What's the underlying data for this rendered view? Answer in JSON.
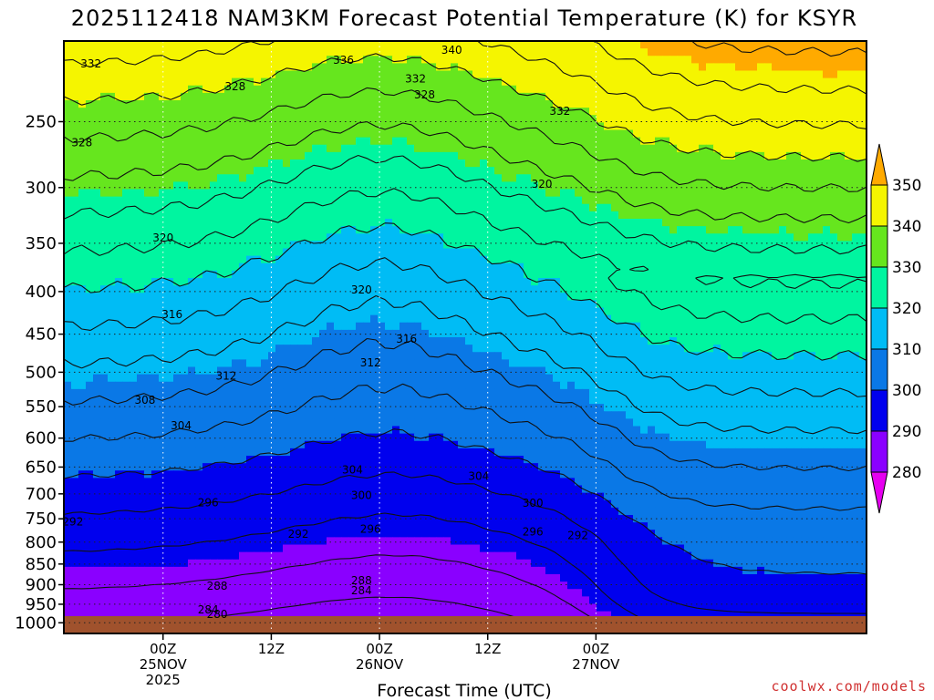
{
  "chart_data": {
    "type": "filled-contour",
    "title": "2025112418 NAM3KM Forecast Potential Temperature (K) for KSYR",
    "xlabel": "Forecast Time (UTC)",
    "ylabel": "",
    "credit": "coolwx.com/models",
    "x_range_hours": [
      -5,
      84
    ],
    "x_ticks": [
      {
        "hour": 6,
        "lines": [
          "00Z",
          "25NOV",
          "2025"
        ]
      },
      {
        "hour": 18,
        "lines": [
          "12Z"
        ]
      },
      {
        "hour": 30,
        "lines": [
          "00Z",
          "26NOV"
        ]
      },
      {
        "hour": 42,
        "lines": [
          "12Z"
        ]
      },
      {
        "hour": 54,
        "lines": [
          "00Z",
          "27NOV"
        ]
      }
    ],
    "y_axis": {
      "type": "log-pressure",
      "top_hpa": 200,
      "bottom_hpa": 1030,
      "ticks": [
        250,
        300,
        350,
        400,
        450,
        500,
        550,
        600,
        650,
        700,
        750,
        800,
        850,
        900,
        950,
        1000
      ]
    },
    "colorbar": {
      "levels": [
        280,
        290,
        300,
        310,
        320,
        330,
        340,
        350
      ],
      "colors": [
        "#e600f0",
        "#8a00ff",
        "#0000ee",
        "#0a78e6",
        "#00bcf5",
        "#00f5a0",
        "#66e61e",
        "#f5f500",
        "#ffaa00"
      ]
    },
    "contour_interval_K": 4,
    "contour_labels": [
      {
        "v": "332",
        "h": -2,
        "p": 213
      },
      {
        "v": "336",
        "h": 26,
        "p": 211
      },
      {
        "v": "340",
        "h": 38,
        "p": 205
      },
      {
        "v": "332",
        "h": 34,
        "p": 222
      },
      {
        "v": "328",
        "h": 35,
        "p": 232
      },
      {
        "v": "332",
        "h": 50,
        "p": 243
      },
      {
        "v": "328",
        "h": 14,
        "p": 227
      },
      {
        "v": "328",
        "h": -3,
        "p": 265
      },
      {
        "v": "320",
        "h": 48,
        "p": 297
      },
      {
        "v": "320",
        "h": 6,
        "p": 345
      },
      {
        "v": "320",
        "h": 28,
        "p": 398
      },
      {
        "v": "316",
        "h": 7,
        "p": 426
      },
      {
        "v": "316",
        "h": 33,
        "p": 456
      },
      {
        "v": "312",
        "h": 29,
        "p": 487
      },
      {
        "v": "312",
        "h": 13,
        "p": 505
      },
      {
        "v": "308",
        "h": 4,
        "p": 540
      },
      {
        "v": "304",
        "h": 8,
        "p": 580
      },
      {
        "v": "304",
        "h": 27,
        "p": 655
      },
      {
        "v": "304",
        "h": 41,
        "p": 667
      },
      {
        "v": "300",
        "h": 28,
        "p": 703
      },
      {
        "v": "300",
        "h": 47,
        "p": 718
      },
      {
        "v": "296",
        "h": 11,
        "p": 717
      },
      {
        "v": "296",
        "h": 29,
        "p": 772
      },
      {
        "v": "296",
        "h": 47,
        "p": 778
      },
      {
        "v": "292",
        "h": -4,
        "p": 756
      },
      {
        "v": "292",
        "h": 21,
        "p": 782
      },
      {
        "v": "292",
        "h": 52,
        "p": 785
      },
      {
        "v": "288",
        "h": 12,
        "p": 903
      },
      {
        "v": "288",
        "h": 28,
        "p": 890
      },
      {
        "v": "284",
        "h": 28,
        "p": 915
      },
      {
        "v": "284",
        "h": 11,
        "p": 965
      },
      {
        "v": "280",
        "h": 12,
        "p": 977
      }
    ]
  },
  "contour_field_description": {
    "notes": "Potential temperature increases upward; a deep cold trough dips near 00Z 26NOV and warm air surges in after 00Z 27NOV."
  }
}
